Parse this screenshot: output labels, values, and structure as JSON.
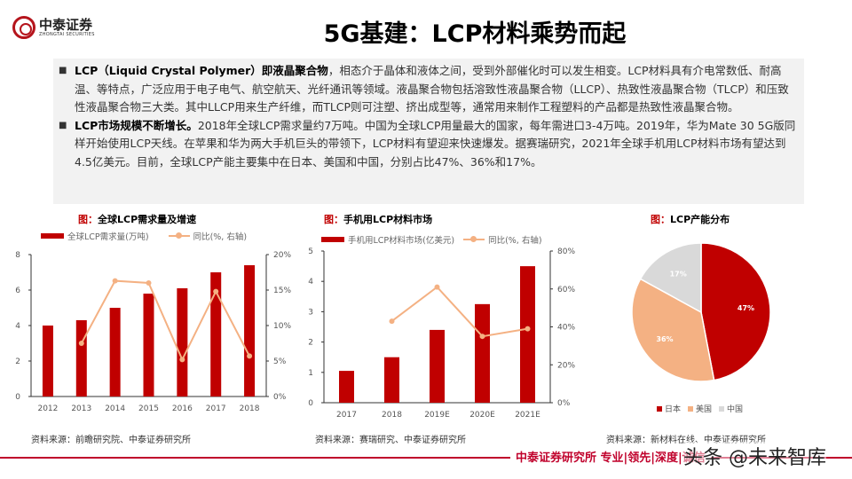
{
  "header": {
    "logo_cn": "中泰证券",
    "logo_en": "ZHONGTAI SECURITIES",
    "title": "5G基建：LCP材料乘势而起"
  },
  "bullets": [
    {
      "bold": "LCP（Liquid Crystal Polymer）即液晶聚合物",
      "text": "，相态介于晶体和液体之间，受到外部催化时可以发生相变。LCP材料具有介电常数低、耐高温、等特点，广泛应用于电子电气、航空航天、光纤通讯等领域。液晶聚合物包括溶致性液晶聚合物（LLCP）、热致性液晶聚合物（TLCP）和压致性液晶聚合物三大类。其中LLCP用来生产纤维，而TLCP则可注塑、挤出成型等，通常用来制作工程塑料的产品都是热致性液晶聚合物。"
    },
    {
      "bold": "LCP市场规模不断增长。",
      "text": "2018年全球LCP需求量约7万吨。中国为全球LCP用量最大的国家，每年需进口3-4万吨。2019年，华为Mate 30 5G版同样开始使用LCP天线。在苹果和华为两大手机巨头的带领下，LCP材料有望迎来快速爆发。据赛瑞研究，2021年全球手机用LCP材料市场有望达到4.5亿美元。目前，全球LCP产能主要集中在日本、美国和中国，分别占比47%、36%和17%。"
    }
  ],
  "bullet_marker": "■",
  "colors": {
    "bar": "#c00000",
    "line": "#f4b183",
    "pie": [
      "#c00000",
      "#f4b183",
      "#d9d9d9"
    ]
  },
  "chart_data": [
    {
      "type": "bar",
      "title_prefix": "图：",
      "title": "全球LCP需求量及增速",
      "categories": [
        "2012",
        "2013",
        "2014",
        "2015",
        "2016",
        "2017",
        "2018"
      ],
      "series": [
        {
          "name": "全球LCP需求量(万吨)",
          "type": "bar",
          "axis": "left",
          "values": [
            4.0,
            4.3,
            5.0,
            5.8,
            6.1,
            7.0,
            7.4
          ]
        },
        {
          "name": "同比(%, 右轴)",
          "type": "line",
          "axis": "right",
          "values": [
            null,
            7.5,
            16.3,
            16.0,
            5.2,
            14.8,
            5.7
          ]
        }
      ],
      "ylim": [
        0,
        8
      ],
      "yticks": [
        "0",
        "2",
        "4",
        "6",
        "8"
      ],
      "y2lim": [
        0,
        20
      ],
      "y2ticks": [
        "0%",
        "5%",
        "10%",
        "15%",
        "20%"
      ],
      "legend": "top",
      "source": "资料来源：前瞻研究院、中泰证券研究所"
    },
    {
      "type": "bar",
      "title_prefix": "图：",
      "title": "手机用LCP材料市场",
      "categories": [
        "2017",
        "2018",
        "2019E",
        "2020E",
        "2021E"
      ],
      "series": [
        {
          "name": "手机用LCP材料市场(亿美元)",
          "type": "bar",
          "axis": "left",
          "values": [
            1.05,
            1.5,
            2.4,
            3.25,
            4.5
          ]
        },
        {
          "name": "同比(%, 右轴)",
          "type": "line",
          "axis": "right",
          "values": [
            null,
            43,
            61,
            35,
            39
          ]
        }
      ],
      "ylim": [
        0,
        5
      ],
      "yticks": [
        "0",
        "1",
        "2",
        "3",
        "4",
        "5"
      ],
      "y2lim": [
        0,
        80
      ],
      "y2ticks": [
        "0%",
        "20%",
        "40%",
        "60%",
        "80%"
      ],
      "legend": "top",
      "source": "资料来源：赛瑞研究、中泰证券研究所"
    },
    {
      "type": "pie",
      "title_prefix": "图：",
      "title": "LCP产能分布",
      "categories": [
        "日本",
        "美国",
        "中国"
      ],
      "values": [
        47,
        36,
        17
      ],
      "labels": [
        "47%",
        "36%",
        "17%"
      ],
      "legend": "bottom",
      "source": "资料来源：新材料在线、中泰证券研究所"
    }
  ],
  "footer": {
    "text": "中泰证券研究所 专业|领先|深度|诚信",
    "watermark": "头条 @未来智库"
  }
}
